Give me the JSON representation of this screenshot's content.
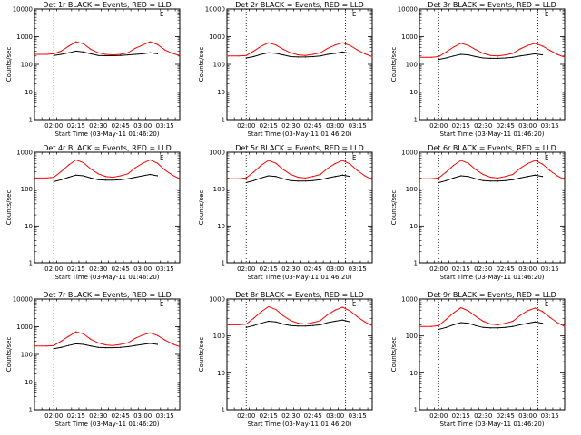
{
  "chart_data": {
    "type": "line",
    "layout": "3x3 grid",
    "ylabel": "Counts/sec",
    "xlabel": "Start Time (03-May-11 01:46:20)",
    "xlim": [
      "01:47",
      "03:25"
    ],
    "x_ticks": [
      "02:00",
      "02:15",
      "02:30",
      "02:45",
      "03:00",
      "03:15"
    ],
    "yscale": "log",
    "ylim": [
      1,
      10000
    ],
    "y_ticks_large": [
      "1",
      "10",
      "100",
      "1000",
      "10000"
    ],
    "y_ticks_small": [
      "1",
      "10",
      "100",
      "1000"
    ],
    "vlines_dotted": [
      "02:00",
      "03:07"
    ],
    "legend_marker": "E",
    "series_colors": {
      "events": "#000000",
      "lld": "#ff0000"
    },
    "panels": [
      {
        "title": "Det 1r BLACK = Events, RED = LLD",
        "ymax": 10000,
        "x": [
          "01:47",
          "01:55",
          "02:00",
          "02:05",
          "02:10",
          "02:15",
          "02:20",
          "02:25",
          "02:30",
          "02:35",
          "02:40",
          "02:45",
          "02:50",
          "02:55",
          "03:00",
          "03:05",
          "03:10",
          "03:15",
          "03:20",
          "03:25"
        ],
        "lld": [
          230,
          230,
          240,
          300,
          450,
          650,
          550,
          350,
          260,
          230,
          220,
          230,
          260,
          380,
          500,
          650,
          520,
          330,
          250,
          210
        ],
        "events": [
          null,
          null,
          210,
          230,
          260,
          300,
          280,
          240,
          210,
          205,
          205,
          210,
          220,
          230,
          240,
          260,
          240,
          null,
          null,
          null
        ]
      },
      {
        "title": "Det 2r BLACK = Events, RED = LLD",
        "ymax": 10000,
        "x": [
          "01:47",
          "01:55",
          "02:00",
          "02:05",
          "02:10",
          "02:15",
          "02:20",
          "02:25",
          "02:30",
          "02:35",
          "02:40",
          "02:45",
          "02:50",
          "02:55",
          "03:00",
          "03:05",
          "03:10",
          "03:15",
          "03:20",
          "03:25"
        ],
        "lld": [
          200,
          200,
          210,
          300,
          450,
          600,
          500,
          350,
          260,
          220,
          210,
          230,
          260,
          380,
          500,
          600,
          480,
          330,
          240,
          190
        ],
        "events": [
          null,
          null,
          170,
          190,
          230,
          260,
          250,
          220,
          190,
          185,
          185,
          190,
          200,
          230,
          250,
          280,
          250,
          null,
          null,
          null
        ]
      },
      {
        "title": "Det 3r BLACK = Events, RED = LLD",
        "ymax": 10000,
        "x": [
          "01:47",
          "01:55",
          "02:00",
          "02:05",
          "02:10",
          "02:15",
          "02:20",
          "02:25",
          "02:30",
          "02:35",
          "02:40",
          "02:45",
          "02:50",
          "02:55",
          "03:00",
          "03:05",
          "03:10",
          "03:15",
          "03:20",
          "03:25"
        ],
        "lld": [
          180,
          180,
          190,
          280,
          420,
          580,
          480,
          340,
          250,
          210,
          200,
          220,
          250,
          360,
          480,
          570,
          460,
          320,
          230,
          180
        ],
        "events": [
          null,
          null,
          150,
          170,
          200,
          230,
          220,
          190,
          170,
          165,
          165,
          170,
          180,
          200,
          220,
          240,
          220,
          null,
          null,
          null
        ]
      },
      {
        "title": "Det 4r BLACK = Events, RED = LLD",
        "ymax": 1000,
        "x": [
          "01:47",
          "01:55",
          "02:00",
          "02:05",
          "02:10",
          "02:15",
          "02:20",
          "02:25",
          "02:30",
          "02:35",
          "02:40",
          "02:45",
          "02:50",
          "02:55",
          "03:00",
          "03:05",
          "03:10",
          "03:15",
          "03:20",
          "03:25"
        ],
        "lld": [
          200,
          200,
          210,
          300,
          450,
          620,
          520,
          350,
          260,
          220,
          210,
          230,
          260,
          380,
          500,
          620,
          500,
          330,
          240,
          190
        ],
        "events": [
          null,
          null,
          160,
          180,
          210,
          240,
          230,
          200,
          180,
          175,
          175,
          180,
          190,
          210,
          230,
          250,
          230,
          null,
          null,
          null
        ]
      },
      {
        "title": "Det 5r BLACK = Events, RED = LLD",
        "ymax": 1000,
        "x": [
          "01:47",
          "01:55",
          "02:00",
          "02:05",
          "02:10",
          "02:15",
          "02:20",
          "02:25",
          "02:30",
          "02:35",
          "02:40",
          "02:45",
          "02:50",
          "02:55",
          "03:00",
          "03:05",
          "03:10",
          "03:15",
          "03:20",
          "03:25"
        ],
        "lld": [
          190,
          190,
          200,
          290,
          440,
          600,
          500,
          340,
          250,
          210,
          200,
          220,
          250,
          370,
          490,
          600,
          480,
          320,
          230,
          180
        ],
        "events": [
          null,
          null,
          150,
          170,
          200,
          230,
          220,
          190,
          170,
          165,
          165,
          170,
          180,
          200,
          220,
          240,
          220,
          null,
          null,
          null
        ]
      },
      {
        "title": "Det 6r BLACK = Events, RED = LLD",
        "ymax": 1000,
        "x": [
          "01:47",
          "01:55",
          "02:00",
          "02:05",
          "02:10",
          "02:15",
          "02:20",
          "02:25",
          "02:30",
          "02:35",
          "02:40",
          "02:45",
          "02:50",
          "02:55",
          "03:00",
          "03:05",
          "03:10",
          "03:15",
          "03:20",
          "03:25"
        ],
        "lld": [
          190,
          190,
          200,
          290,
          440,
          600,
          500,
          340,
          250,
          210,
          200,
          220,
          250,
          370,
          490,
          600,
          480,
          320,
          230,
          180
        ],
        "events": [
          null,
          null,
          150,
          170,
          200,
          230,
          220,
          190,
          170,
          165,
          165,
          170,
          180,
          200,
          220,
          240,
          220,
          null,
          null,
          null
        ]
      },
      {
        "title": "Det 7r BLACK = Events, RED = LLD",
        "ymax": 10000,
        "x": [
          "01:47",
          "01:55",
          "02:00",
          "02:05",
          "02:10",
          "02:15",
          "02:20",
          "02:25",
          "02:30",
          "02:35",
          "02:40",
          "02:45",
          "02:50",
          "02:55",
          "03:00",
          "03:05",
          "03:10",
          "03:15",
          "03:20",
          "03:25"
        ],
        "lld": [
          200,
          200,
          210,
          300,
          450,
          650,
          550,
          350,
          260,
          220,
          210,
          230,
          260,
          380,
          500,
          600,
          480,
          330,
          240,
          190
        ],
        "events": [
          null,
          null,
          160,
          180,
          210,
          240,
          230,
          200,
          180,
          175,
          175,
          180,
          190,
          210,
          230,
          250,
          230,
          null,
          null,
          null
        ]
      },
      {
        "title": "Det 8r BLACK = Events, RED = LLD",
        "ymax": 1000,
        "x": [
          "01:47",
          "01:55",
          "02:00",
          "02:05",
          "02:10",
          "02:15",
          "02:20",
          "02:25",
          "02:30",
          "02:35",
          "02:40",
          "02:45",
          "02:50",
          "02:55",
          "03:00",
          "03:05",
          "03:10",
          "03:15",
          "03:20",
          "03:25"
        ],
        "lld": [
          200,
          200,
          210,
          300,
          450,
          620,
          520,
          350,
          260,
          220,
          210,
          230,
          260,
          380,
          500,
          600,
          480,
          330,
          240,
          190
        ],
        "events": [
          null,
          null,
          170,
          190,
          220,
          250,
          240,
          210,
          190,
          185,
          185,
          190,
          200,
          230,
          250,
          270,
          240,
          null,
          null,
          null
        ]
      },
      {
        "title": "Det 9r BLACK = Events, RED = LLD",
        "ymax": 1000,
        "x": [
          "01:47",
          "01:55",
          "02:00",
          "02:05",
          "02:10",
          "02:15",
          "02:20",
          "02:25",
          "02:30",
          "02:35",
          "02:40",
          "02:45",
          "02:50",
          "02:55",
          "03:00",
          "03:05",
          "03:10",
          "03:15",
          "03:20",
          "03:25"
        ],
        "lld": [
          180,
          180,
          190,
          280,
          420,
          580,
          480,
          340,
          250,
          210,
          200,
          220,
          250,
          360,
          480,
          570,
          460,
          320,
          230,
          180
        ],
        "events": [
          null,
          null,
          150,
          170,
          200,
          230,
          220,
          190,
          170,
          165,
          165,
          170,
          180,
          200,
          220,
          240,
          220,
          null,
          null,
          null
        ]
      }
    ]
  }
}
